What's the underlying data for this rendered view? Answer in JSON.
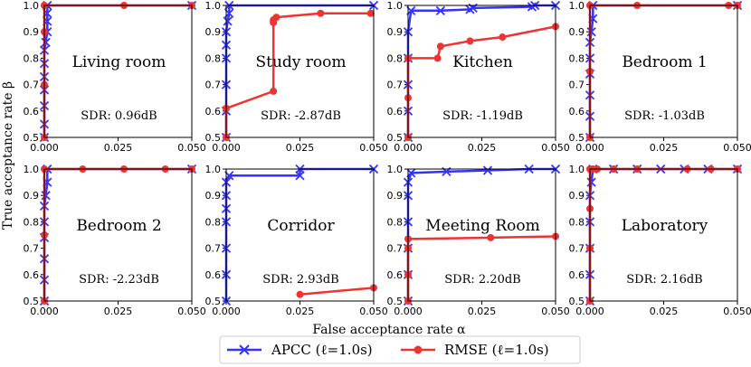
{
  "figure": {
    "xlabel": "False acceptance rate α",
    "ylabel": "True acceptance rate β",
    "legend": [
      {
        "label": "APCC (ℓ=1.0s)",
        "color": "#3333ff",
        "marker": "x"
      },
      {
        "label": "RMSE (ℓ=1.0s)",
        "color": "#ee3333",
        "marker": "o"
      }
    ]
  },
  "chart_data": [
    {
      "type": "line",
      "title": "Living room",
      "annotation": "SDR: 0.96dB",
      "xlim": [
        0,
        0.05
      ],
      "ylim": [
        0.5,
        1.0
      ],
      "xticks": [
        "0.000",
        "0.025",
        "0.050"
      ],
      "yticks": [
        "0.5",
        "0.6",
        "0.7",
        "0.8",
        "0.9",
        "1.0"
      ],
      "series": [
        {
          "name": "APCC (ℓ=1.0s)",
          "x": [
            0,
            0,
            0,
            0,
            0,
            0,
            0,
            0.0005,
            0.001,
            0.001,
            0.001,
            0.001,
            0.05
          ],
          "y": [
            0.5,
            0.55,
            0.62,
            0.68,
            0.73,
            0.78,
            0.83,
            0.86,
            0.9,
            0.94,
            0.97,
            1.0,
            1.0
          ]
        },
        {
          "name": "RMSE (ℓ=1.0s)",
          "x": [
            0,
            0,
            0,
            0,
            0.027,
            0.05
          ],
          "y": [
            0.5,
            0.7,
            0.9,
            1.0,
            1.0,
            1.0
          ]
        }
      ]
    },
    {
      "type": "line",
      "title": "Study room",
      "annotation": "SDR: -2.87dB",
      "xlim": [
        0,
        0.05
      ],
      "ylim": [
        0.5,
        1.0
      ],
      "xticks": [
        "0.000",
        "0.025",
        "0.050"
      ],
      "yticks": [
        "0.5",
        "0.6",
        "0.7",
        "0.8",
        "0.9",
        "1.0"
      ],
      "series": [
        {
          "name": "APCC (ℓ=1.0s)",
          "x": [
            0,
            0,
            0,
            0,
            0,
            0,
            0.0005,
            0.001,
            0.001,
            0.05
          ],
          "y": [
            0.5,
            0.6,
            0.7,
            0.8,
            0.85,
            0.9,
            0.94,
            0.97,
            1.0,
            1.0
          ]
        },
        {
          "name": "RMSE (ℓ=1.0s)",
          "x": [
            0,
            0,
            0.016,
            0.016,
            0.016,
            0.017,
            0.032,
            0.049
          ],
          "y": [
            0.5,
            0.61,
            0.675,
            0.935,
            0.945,
            0.955,
            0.97,
            0.97
          ]
        }
      ]
    },
    {
      "type": "line",
      "title": "Kitchen",
      "annotation": "SDR: -1.19dB",
      "xlim": [
        0,
        0.05
      ],
      "ylim": [
        0.5,
        1.0
      ],
      "xticks": [
        "0.000",
        "0.025",
        "0.050"
      ],
      "yticks": [
        "0.5",
        "0.6",
        "0.7",
        "0.8",
        "0.9",
        "1.0"
      ],
      "series": [
        {
          "name": "APCC (ℓ=1.0s)",
          "x": [
            0,
            0,
            0,
            0,
            0,
            0.001,
            0.011,
            0.021,
            0.022,
            0.042,
            0.043,
            0.05
          ],
          "y": [
            0.5,
            0.6,
            0.7,
            0.8,
            0.9,
            0.98,
            0.98,
            0.985,
            0.99,
            0.995,
            1.0,
            1.0
          ]
        },
        {
          "name": "RMSE (ℓ=1.0s)",
          "x": [
            0,
            0,
            0,
            0.01,
            0.011,
            0.021,
            0.032,
            0.05
          ],
          "y": [
            0.5,
            0.65,
            0.8,
            0.8,
            0.845,
            0.865,
            0.88,
            0.92
          ]
        }
      ]
    },
    {
      "type": "line",
      "title": "Bedroom 1",
      "annotation": "SDR: -1.03dB",
      "xlim": [
        0,
        0.05
      ],
      "ylim": [
        0.5,
        1.0
      ],
      "xticks": [
        "0.000",
        "0.025",
        "0.050"
      ],
      "yticks": [
        "0.5",
        "0.6",
        "0.7",
        "0.8",
        "0.9",
        "1.0"
      ],
      "series": [
        {
          "name": "APCC (ℓ=1.0s)",
          "x": [
            0,
            0,
            0,
            0,
            0,
            0,
            0.0005,
            0.001,
            0.001,
            0.05
          ],
          "y": [
            0.5,
            0.58,
            0.66,
            0.74,
            0.8,
            0.86,
            0.9,
            0.95,
            1.0,
            1.0
          ]
        },
        {
          "name": "RMSE (ℓ=1.0s)",
          "x": [
            0,
            0,
            0,
            0.016,
            0.047,
            0.05
          ],
          "y": [
            0.5,
            0.75,
            1.0,
            1.0,
            1.0,
            1.0
          ]
        }
      ]
    },
    {
      "type": "line",
      "title": "Bedroom 2",
      "annotation": "SDR: -2.23dB",
      "xlim": [
        0,
        0.05
      ],
      "ylim": [
        0.5,
        1.0
      ],
      "xticks": [
        "0.000",
        "0.025",
        "0.050"
      ],
      "yticks": [
        "0.5",
        "0.6",
        "0.7",
        "0.8",
        "0.9",
        "1.0"
      ],
      "series": [
        {
          "name": "APCC (ℓ=1.0s)",
          "x": [
            0,
            0,
            0,
            0,
            0,
            0,
            0.0005,
            0.001,
            0.001,
            0.05
          ],
          "y": [
            0.5,
            0.58,
            0.66,
            0.74,
            0.8,
            0.86,
            0.9,
            0.95,
            1.0,
            1.0
          ]
        },
        {
          "name": "RMSE (ℓ=1.0s)",
          "x": [
            0,
            0,
            0,
            0.013,
            0.027,
            0.041,
            0.05
          ],
          "y": [
            0.5,
            0.75,
            1.0,
            1.0,
            1.0,
            1.0,
            1.0
          ]
        }
      ]
    },
    {
      "type": "line",
      "title": "Corridor",
      "annotation": "SDR: 2.93dB",
      "xlim": [
        0,
        0.05
      ],
      "ylim": [
        0.5,
        1.0
      ],
      "xticks": [
        "0.000",
        "0.025",
        "0.050"
      ],
      "yticks": [
        "0.5",
        "0.6",
        "0.7",
        "0.8",
        "0.9",
        "1.0"
      ],
      "series": [
        {
          "name": "APCC (ℓ=1.0s)",
          "x": [
            0,
            0,
            0,
            0,
            0,
            0,
            0,
            0.001,
            0.025,
            0.025,
            0.05
          ],
          "y": [
            0.5,
            0.6,
            0.7,
            0.8,
            0.85,
            0.9,
            0.95,
            0.975,
            0.975,
            1.0,
            1.0
          ]
        },
        {
          "name": "RMSE (ℓ=1.0s)",
          "x": [
            0.025,
            0.05
          ],
          "y": [
            0.525,
            0.55
          ]
        }
      ]
    },
    {
      "type": "line",
      "title": "Meeting Room",
      "annotation": "SDR: 2.20dB",
      "xlim": [
        0,
        0.05
      ],
      "ylim": [
        0.5,
        1.0
      ],
      "xticks": [
        "0.000",
        "0.025",
        "0.050"
      ],
      "yticks": [
        "0.5",
        "0.6",
        "0.7",
        "0.8",
        "0.9",
        "1.0"
      ],
      "series": [
        {
          "name": "APCC (ℓ=1.0s)",
          "x": [
            0,
            0,
            0,
            0,
            0,
            0,
            0.001,
            0.013,
            0.027,
            0.041,
            0.05
          ],
          "y": [
            0.5,
            0.6,
            0.7,
            0.8,
            0.9,
            0.95,
            0.985,
            0.99,
            0.995,
            1.0,
            1.0
          ]
        },
        {
          "name": "RMSE (ℓ=1.0s)",
          "x": [
            0,
            0,
            0,
            0,
            0.028,
            0.05
          ],
          "y": [
            0.5,
            0.6,
            0.7,
            0.735,
            0.74,
            0.745
          ]
        }
      ]
    },
    {
      "type": "line",
      "title": "Laboratory",
      "annotation": "SDR: 2.16dB",
      "xlim": [
        0,
        0.05
      ],
      "ylim": [
        0.5,
        1.0
      ],
      "xticks": [
        "0.000",
        "0.025",
        "0.050"
      ],
      "yticks": [
        "0.5",
        "0.6",
        "0.7",
        "0.8",
        "0.9",
        "1.0"
      ],
      "series": [
        {
          "name": "APCC (ℓ=1.0s)",
          "x": [
            0,
            0,
            0,
            0,
            0,
            0.0005,
            0.001,
            0.008,
            0.016,
            0.024,
            0.032,
            0.04,
            0.05
          ],
          "y": [
            0.5,
            0.6,
            0.7,
            0.8,
            0.9,
            0.95,
            1.0,
            1.0,
            1.0,
            1.0,
            1.0,
            1.0,
            1.0
          ]
        },
        {
          "name": "RMSE (ℓ=1.0s)",
          "x": [
            0,
            0,
            0,
            0,
            0.001,
            0.0025,
            0.008,
            0.016,
            0.033,
            0.041,
            0.05
          ],
          "y": [
            0.5,
            0.7,
            0.85,
            1.0,
            1.0,
            1.0,
            1.0,
            1.0,
            1.0,
            1.0,
            1.0
          ]
        }
      ]
    }
  ]
}
